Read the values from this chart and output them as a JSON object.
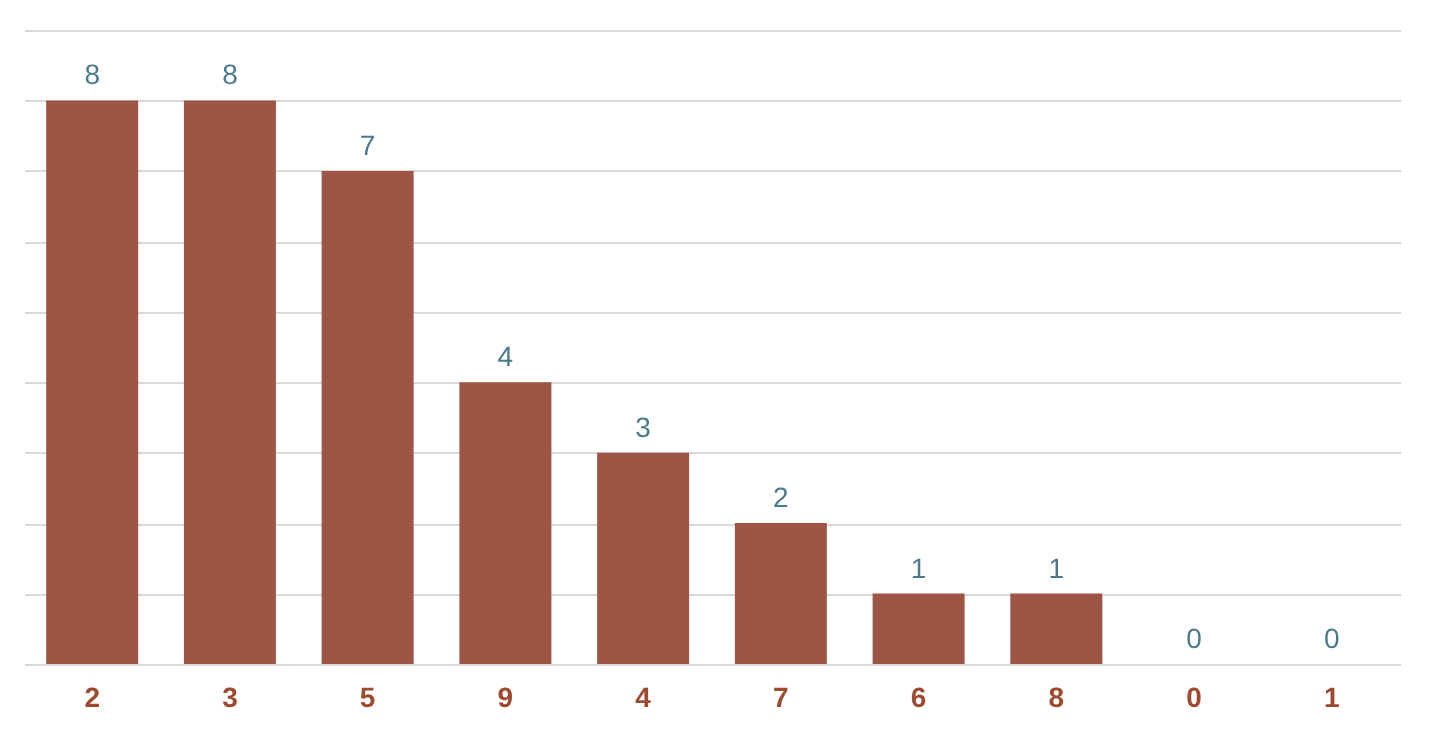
{
  "chart_data": {
    "type": "bar",
    "categories": [
      "2",
      "3",
      "5",
      "9",
      "4",
      "7",
      "6",
      "8",
      "0",
      "1"
    ],
    "values": [
      8,
      8,
      7,
      4,
      3,
      2,
      1,
      1,
      0,
      0
    ],
    "color": "#9e5545",
    "ylim": [
      0,
      9
    ],
    "grid": "y",
    "data_labels": true,
    "tick_labels": "x"
  }
}
